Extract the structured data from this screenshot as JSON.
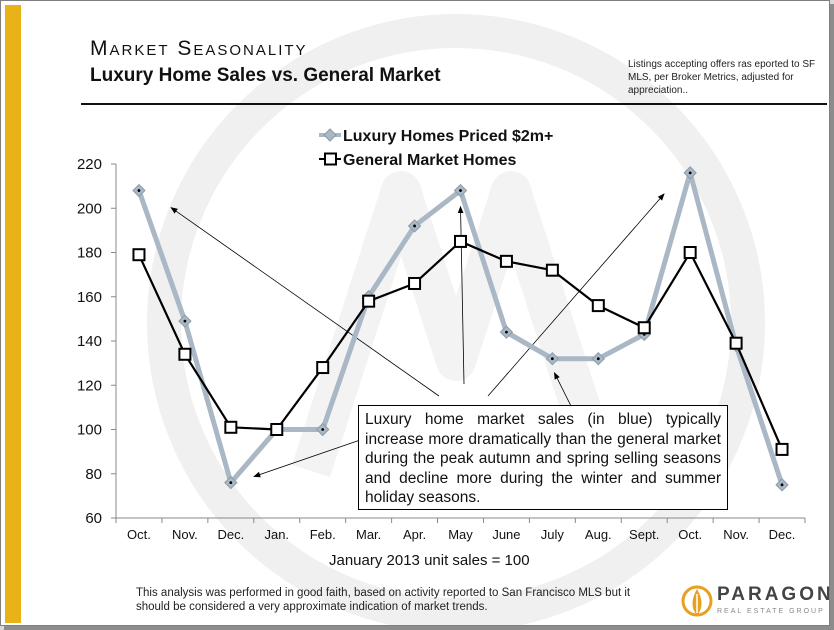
{
  "header": {
    "title": "Market Seasonality",
    "subtitle": "Luxury Home Sales vs. General Market",
    "note": "Listings accepting offers ras eported to SF MLS, per Broker Metrics, adjusted for appreciation.."
  },
  "callout_text": "Luxury home market sales (in blue) typically increase more dramatically than the general market during the peak autumn and spring selling seasons and decline more during the winter and summer holiday seasons.",
  "caption": "January 2013 unit sales = 100",
  "footer": "This analysis was performed in good faith, based on activity reported to San Francisco MLS but it should be considered a very approximate indication of market trends.",
  "brand": {
    "name": "PARAGON",
    "tagline": "REAL ESTATE GROUP"
  },
  "colors": {
    "luxury": "#a9b8c4",
    "general": "#000000",
    "accent": "#e8b317"
  },
  "chart_data": {
    "type": "line",
    "categories": [
      "Oct.",
      "Nov.",
      "Dec.",
      "Jan.",
      "Feb.",
      "Mar.",
      "Apr.",
      "May",
      "June",
      "July",
      "Aug.",
      "Sept.",
      "Oct.",
      "Nov.",
      "Dec."
    ],
    "series": [
      {
        "name": "Luxury Homes Priced $2m+",
        "values": [
          208,
          149,
          76,
          100,
          100,
          160,
          192,
          208,
          144,
          132,
          132,
          143,
          216,
          138,
          75
        ]
      },
      {
        "name": "General Market Homes",
        "values": [
          179,
          134,
          101,
          100,
          128,
          158,
          166,
          185,
          176,
          172,
          156,
          146,
          180,
          139,
          91
        ]
      }
    ],
    "yticks": [
      "60",
      "80",
      "100",
      "120",
      "140",
      "160",
      "180",
      "200",
      "220"
    ],
    "ylim": [
      60,
      220
    ],
    "grid": false,
    "legend": "top-center"
  }
}
